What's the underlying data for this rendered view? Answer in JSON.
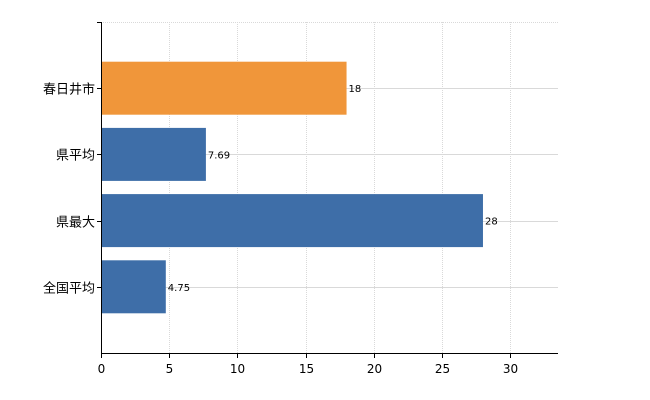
{
  "chart_data": {
    "type": "bar",
    "orientation": "horizontal",
    "categories": [
      "春日井市",
      "県平均",
      "県最大",
      "全国平均"
    ],
    "values": [
      18,
      7.69,
      28,
      4.75
    ],
    "data_labels": [
      "18",
      "7.69",
      "28",
      "4.75"
    ],
    "bar_colors": [
      "#f0963a",
      "#3e6ea8",
      "#3e6ea8",
      "#3e6ea8"
    ],
    "xlim": [
      0,
      33.5
    ],
    "xticks": [
      0,
      5,
      10,
      15,
      20,
      25,
      30
    ],
    "grid": true,
    "title": "",
    "xlabel": "",
    "ylabel": ""
  }
}
